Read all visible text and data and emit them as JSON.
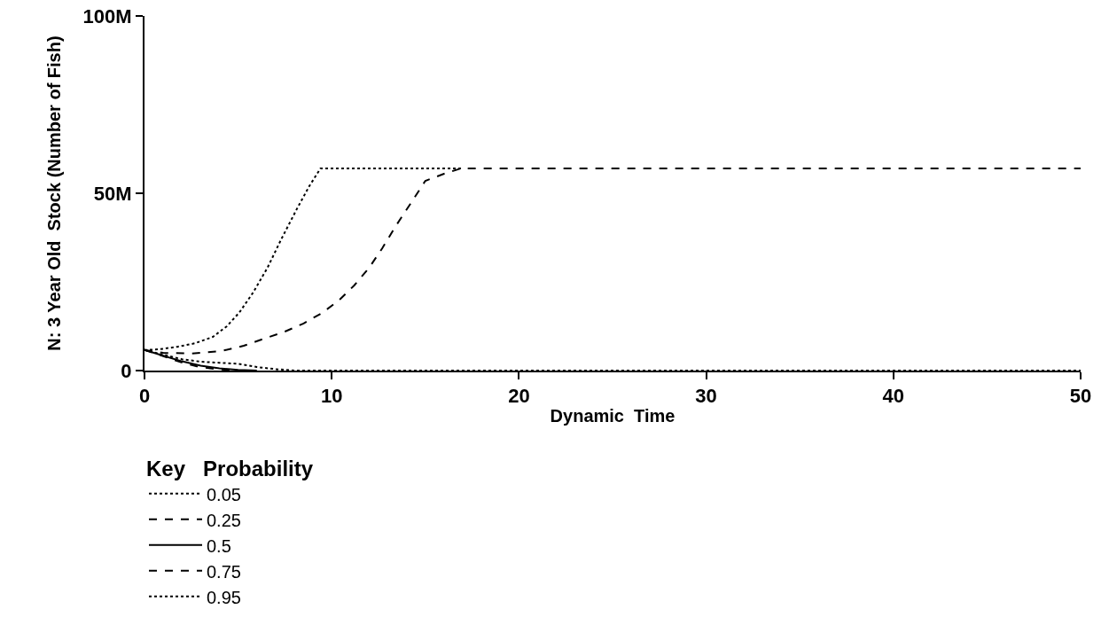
{
  "chart_data": {
    "type": "line",
    "xlabel": "Dynamic  Time",
    "ylabel": "N: 3 Year Old  Stock (Number of Fish)",
    "legend_title": "Key   Probability",
    "xlim": [
      0,
      50
    ],
    "xticks": [
      0,
      10,
      20,
      30,
      40,
      50
    ],
    "ylim": [
      0,
      100000000
    ],
    "yticks": [
      0,
      {
        "value": 50000000,
        "label": "50M"
      },
      {
        "value": 100000000,
        "label": "100M"
      }
    ],
    "grid": false,
    "legend": "bottom left",
    "marker": "none",
    "series": [
      {
        "name": "0.05",
        "color": "#000000",
        "line_style": "dotted",
        "x": [
          0,
          1,
          2,
          3,
          4,
          5,
          6,
          7,
          8,
          50
        ],
        "values": [
          5800000,
          4500000,
          3200000,
          2500000,
          2200000,
          1900000,
          1000000,
          400000,
          0,
          0
        ]
      },
      {
        "name": "0.25",
        "color": "#000000",
        "line_style": "dashed",
        "x": [
          0,
          0.7,
          1.4,
          2.1,
          2.8,
          3.5,
          4.1,
          5
        ],
        "values": [
          5800000,
          4600000,
          3300000,
          2100000,
          1200000,
          600000,
          300000,
          0
        ]
      },
      {
        "name": "0.5",
        "color": "#000000",
        "line_style": "solid",
        "x": [
          0,
          1,
          2,
          3,
          4,
          5,
          6
        ],
        "values": [
          5800000,
          4200000,
          2600000,
          1400000,
          600000,
          200000,
          0
        ]
      },
      {
        "name": "0.75",
        "color": "#000000",
        "line_style": "dashed",
        "x": [
          0,
          1,
          2.5,
          4.1,
          5.3,
          6.5,
          7.5,
          8.5,
          9.5,
          10.4,
          11.2,
          12,
          12.7,
          13.4,
          14.2,
          15,
          16,
          16.9,
          50
        ],
        "values": [
          5800000,
          5000000,
          4800000,
          5500000,
          7000000,
          9200000,
          11000000,
          13300000,
          16300000,
          19900000,
          24000000,
          29000000,
          34500000,
          40600000,
          47000000,
          53500000,
          55500000,
          57000000,
          57000000
        ]
      },
      {
        "name": "0.95",
        "color": "#000000",
        "line_style": "dotted",
        "x": [
          0,
          0.8,
          1.75,
          2.7,
          3.65,
          4.4,
          5.07,
          5.8,
          6.57,
          7.3,
          8.14,
          8.8,
          9.4,
          17
        ],
        "values": [
          5800000,
          6000000,
          6700000,
          7700000,
          9500000,
          12500000,
          16400000,
          22000000,
          29000000,
          37000000,
          45600000,
          52000000,
          57000000,
          57000000
        ]
      }
    ]
  }
}
